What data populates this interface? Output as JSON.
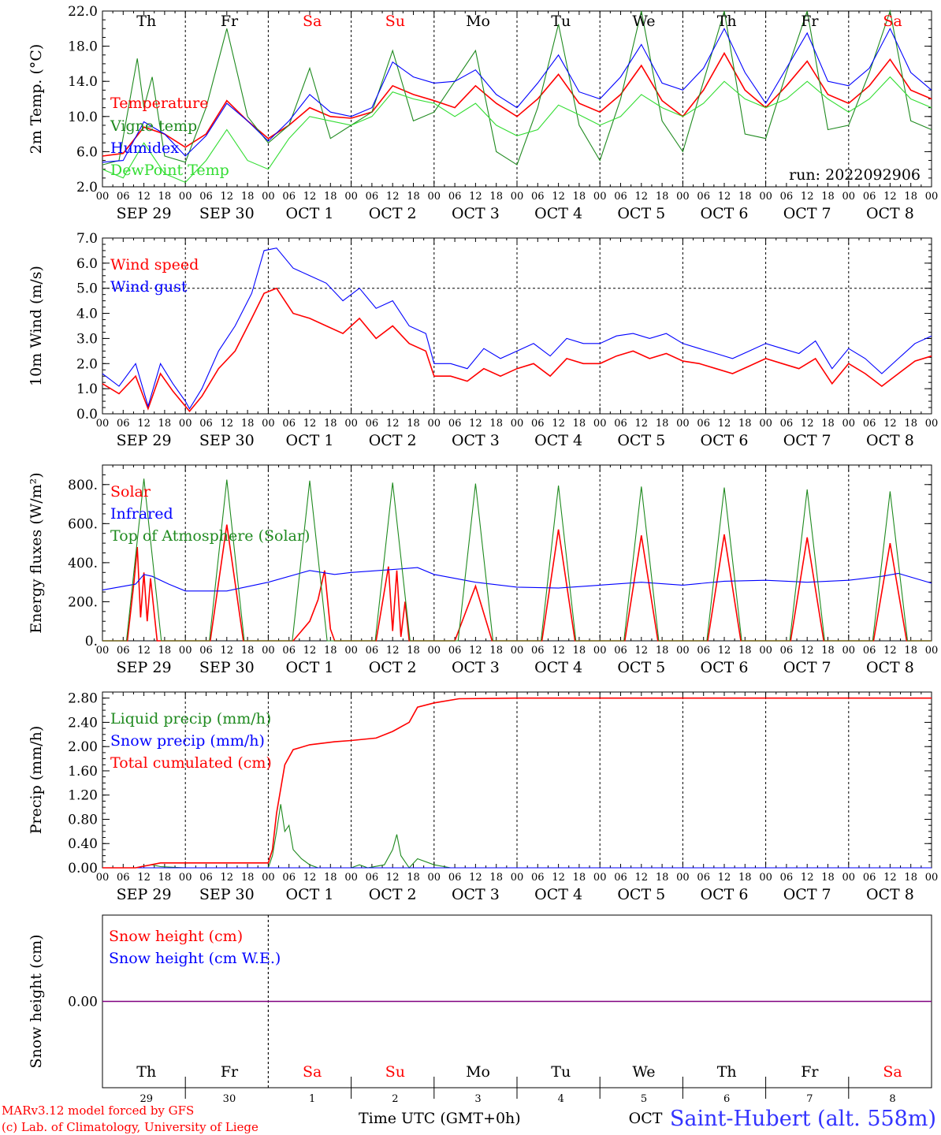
{
  "page": {
    "station_title": "Saint-Hubert (alt. 558m)",
    "run_label": "run: 2022092906",
    "credit_line1": "MARv3.12 model forced by GFS",
    "credit_line2": "(c) Lab. of Climatology, University of Liege",
    "xaxis_title": "Time UTC (GMT+0h)"
  },
  "colors": {
    "red": "#ff0000",
    "darkgreen": "#1f8a1f",
    "blue": "#0000ff",
    "lightgreen": "#33dd33",
    "purple": "#800080"
  },
  "time_axis": {
    "hour_ticks": [
      "00",
      "06",
      "12",
      "18"
    ],
    "date_labels": [
      "SEP 29",
      "SEP 30",
      "OCT  1",
      "OCT  2",
      "OCT  3",
      "OCT  4",
      "OCT  5",
      "OCT  6",
      "OCT  7",
      "OCT  8"
    ],
    "weekday_labels": [
      "Th",
      "Fr",
      "Sa",
      "Su",
      "Mo",
      "Tu",
      "We",
      "Th",
      "Fr",
      "Sa"
    ],
    "weekend_index": [
      2,
      3,
      9
    ],
    "bottom_day_numbers": [
      "29",
      "30",
      "1",
      "2",
      "3",
      "4",
      "5",
      "6",
      "7",
      "8"
    ],
    "bottom_oct_label": "OCT"
  },
  "chart_data": [
    {
      "type": "line",
      "ylabel": "2m Temp. (°C)",
      "ylim": [
        2.0,
        22.0
      ],
      "yticks": [
        "2.0",
        "6.0",
        "10.0",
        "14.0",
        "18.0",
        "22.0"
      ],
      "series": [
        {
          "name": "Temperature",
          "color_key": "red",
          "x": [
            0,
            0.25,
            0.5,
            0.75,
            1,
            1.25,
            1.5,
            1.75,
            2,
            2.25,
            2.5,
            2.75,
            3,
            3.25,
            3.5,
            3.75,
            4,
            4.25,
            4.5,
            4.75,
            5,
            5.25,
            5.5,
            5.75,
            6,
            6.25,
            6.5,
            6.75,
            7,
            7.25,
            7.5,
            7.75,
            8,
            8.25,
            8.5,
            8.75,
            9,
            9.25,
            9.5,
            9.75,
            10
          ],
          "y": [
            5.5,
            5.8,
            8.8,
            8.0,
            6.5,
            8.0,
            11.8,
            9.5,
            7.5,
            9.0,
            11.0,
            10.0,
            9.8,
            10.5,
            13.5,
            12.5,
            11.8,
            11.0,
            13.5,
            11.5,
            10.0,
            12.0,
            14.8,
            11.5,
            10.5,
            12.5,
            15.8,
            11.8,
            10.0,
            13.0,
            17.2,
            13.0,
            11.0,
            13.5,
            16.3,
            12.5,
            11.5,
            13.5,
            16.5,
            13.0,
            12.0
          ]
        },
        {
          "name": "Vigne temp",
          "color_key": "darkgreen",
          "x": [
            0,
            0.2,
            0.42,
            0.5,
            0.6,
            0.75,
            1,
            1.25,
            1.5,
            1.75,
            2,
            2.25,
            2.5,
            2.75,
            3,
            3.25,
            3.5,
            3.75,
            4,
            4.25,
            4.5,
            4.75,
            5,
            5.25,
            5.5,
            5.75,
            6,
            6.25,
            6.5,
            6.75,
            7,
            7.25,
            7.5,
            7.75,
            8,
            8.25,
            8.5,
            8.75,
            9,
            9.25,
            9.5,
            9.75,
            10
          ],
          "y": [
            4.5,
            5.0,
            16.6,
            11.0,
            14.5,
            5.5,
            4.8,
            11.0,
            20.0,
            10.0,
            7.0,
            9.0,
            15.5,
            7.5,
            9.0,
            10.5,
            17.5,
            9.5,
            10.5,
            14.0,
            17.5,
            6.0,
            4.5,
            11.0,
            20.5,
            9.0,
            5.0,
            12.0,
            22.0,
            9.5,
            6.0,
            14.0,
            22.0,
            8.0,
            7.5,
            15.0,
            22.0,
            8.5,
            9.0,
            15.0,
            22.0,
            9.5,
            8.5
          ]
        },
        {
          "name": "Humidex",
          "color_key": "blue",
          "x": [
            0,
            0.25,
            0.5,
            0.75,
            1,
            1.25,
            1.5,
            1.75,
            2,
            2.25,
            2.5,
            2.75,
            3,
            3.25,
            3.5,
            3.75,
            4,
            4.25,
            4.5,
            4.75,
            5,
            5.25,
            5.5,
            5.75,
            6,
            6.25,
            6.5,
            6.75,
            7,
            7.25,
            7.5,
            7.75,
            8,
            8.25,
            8.5,
            8.75,
            9,
            9.25,
            9.5,
            9.75,
            10
          ],
          "y": [
            4.8,
            5.0,
            9.4,
            8.0,
            5.5,
            7.8,
            11.5,
            9.5,
            7.2,
            9.5,
            12.5,
            10.5,
            10.0,
            11.0,
            16.2,
            14.5,
            13.8,
            14.0,
            15.3,
            12.5,
            11.0,
            13.8,
            17.0,
            12.8,
            12.0,
            14.5,
            18.2,
            13.8,
            13.0,
            15.5,
            20.0,
            15.0,
            11.5,
            15.5,
            19.5,
            14.0,
            13.5,
            15.5,
            20.0,
            15.0,
            13.0
          ]
        },
        {
          "name": "DewPoint Temp",
          "color_key": "lightgreen",
          "x": [
            0,
            0.25,
            0.5,
            0.75,
            1,
            1.25,
            1.5,
            1.75,
            2,
            2.25,
            2.5,
            2.75,
            3,
            3.25,
            3.5,
            3.75,
            4,
            4.25,
            4.5,
            4.75,
            5,
            5.25,
            5.5,
            5.75,
            6,
            6.25,
            6.5,
            6.75,
            7,
            7.25,
            7.5,
            7.75,
            8,
            8.25,
            8.5,
            8.75,
            9,
            9.25,
            9.5,
            9.75,
            10
          ],
          "y": [
            4.0,
            3.0,
            7.0,
            3.5,
            2.5,
            5.0,
            8.5,
            5.0,
            4.0,
            7.5,
            10.0,
            9.5,
            9.0,
            10.0,
            12.8,
            12.0,
            11.5,
            10.0,
            11.5,
            9.0,
            7.8,
            8.5,
            11.3,
            10.2,
            9.0,
            10.0,
            12.5,
            11.0,
            10.0,
            11.5,
            14.0,
            12.0,
            11.0,
            12.0,
            14.0,
            12.0,
            10.5,
            12.0,
            14.5,
            12.0,
            11.0
          ]
        }
      ]
    },
    {
      "type": "line",
      "ylabel": "10m Wind (m/s)",
      "ylim": [
        0.0,
        7.0
      ],
      "yticks": [
        "0.0",
        "1.0",
        "2.0",
        "3.0",
        "4.0",
        "5.0",
        "6.0",
        "7.0"
      ],
      "hline": 5.0,
      "series": [
        {
          "name": "Wind speed",
          "color_key": "red",
          "x": [
            0,
            0.2,
            0.4,
            0.55,
            0.7,
            0.85,
            1,
            1.05,
            1.2,
            1.4,
            1.6,
            1.8,
            1.95,
            2.1,
            2.3,
            2.5,
            2.7,
            2.9,
            3.1,
            3.3,
            3.5,
            3.7,
            3.9,
            4,
            4.2,
            4.4,
            4.6,
            4.8,
            5,
            5.2,
            5.4,
            5.6,
            5.8,
            6,
            6.2,
            6.4,
            6.6,
            6.8,
            7,
            7.2,
            7.4,
            7.6,
            7.8,
            8,
            8.2,
            8.4,
            8.6,
            8.8,
            9,
            9.2,
            9.4,
            9.6,
            9.8,
            10
          ],
          "y": [
            1.2,
            0.8,
            1.5,
            0.2,
            1.6,
            0.9,
            0.3,
            0.1,
            0.7,
            1.8,
            2.5,
            3.8,
            4.8,
            5.0,
            4.0,
            3.8,
            3.5,
            3.2,
            3.8,
            3.0,
            3.5,
            2.8,
            2.5,
            1.5,
            1.5,
            1.3,
            1.8,
            1.5,
            1.8,
            2.0,
            1.5,
            2.2,
            2.0,
            2.0,
            2.3,
            2.5,
            2.2,
            2.4,
            2.1,
            2.0,
            1.8,
            1.6,
            1.9,
            2.2,
            2.0,
            1.8,
            2.2,
            1.2,
            2.0,
            1.6,
            1.1,
            1.6,
            2.1,
            2.3
          ]
        },
        {
          "name": "Wind gust",
          "color_key": "blue",
          "x": [
            0,
            0.2,
            0.4,
            0.55,
            0.7,
            0.85,
            1,
            1.05,
            1.2,
            1.4,
            1.6,
            1.8,
            1.95,
            2.1,
            2.3,
            2.5,
            2.7,
            2.9,
            3.1,
            3.3,
            3.5,
            3.7,
            3.9,
            4,
            4.2,
            4.4,
            4.6,
            4.8,
            5,
            5.2,
            5.4,
            5.6,
            5.8,
            6,
            6.2,
            6.4,
            6.6,
            6.8,
            7,
            7.2,
            7.4,
            7.6,
            7.8,
            8,
            8.2,
            8.4,
            8.6,
            8.8,
            9,
            9.2,
            9.4,
            9.6,
            9.8,
            10
          ],
          "y": [
            1.6,
            1.1,
            2.0,
            0.3,
            2.0,
            1.2,
            0.5,
            0.2,
            1.0,
            2.5,
            3.5,
            4.8,
            6.5,
            6.6,
            5.8,
            5.5,
            5.2,
            4.5,
            5.0,
            4.2,
            4.5,
            3.5,
            3.2,
            2.0,
            2.0,
            1.8,
            2.6,
            2.2,
            2.5,
            2.8,
            2.3,
            3.0,
            2.8,
            2.8,
            3.1,
            3.2,
            3.0,
            3.2,
            2.8,
            2.6,
            2.4,
            2.2,
            2.5,
            2.8,
            2.6,
            2.4,
            2.9,
            1.8,
            2.6,
            2.2,
            1.6,
            2.2,
            2.8,
            3.1
          ]
        }
      ]
    },
    {
      "type": "line",
      "ylabel": "Energy fluxes (W/m²)",
      "ylim": [
        0,
        900
      ],
      "yticks": [
        "0.",
        "200.",
        "400.",
        "600.",
        "800."
      ],
      "series": [
        {
          "name": "Solar",
          "color_key": "red",
          "x": [
            0,
            0.3,
            0.38,
            0.42,
            0.46,
            0.5,
            0.54,
            0.58,
            0.66,
            1,
            1.3,
            1.5,
            1.7,
            2,
            2.3,
            2.5,
            2.6,
            2.68,
            2.75,
            2.8,
            3,
            3.3,
            3.45,
            3.5,
            3.55,
            3.6,
            3.65,
            3.7,
            4,
            4.25,
            4.5,
            4.7,
            5,
            5.3,
            5.5,
            5.7,
            6,
            6.3,
            6.5,
            6.7,
            7,
            7.3,
            7.5,
            7.7,
            8,
            8.3,
            8.5,
            8.7,
            9,
            9.3,
            9.5,
            9.7,
            10
          ],
          "y": [
            0,
            0,
            300,
            480,
            120,
            350,
            100,
            320,
            0,
            0,
            0,
            595,
            0,
            0,
            0,
            100,
            210,
            360,
            60,
            0,
            0,
            0,
            380,
            50,
            360,
            20,
            200,
            0,
            0,
            0,
            280,
            0,
            0,
            0,
            570,
            0,
            0,
            0,
            540,
            0,
            0,
            0,
            545,
            0,
            0,
            0,
            530,
            0,
            0,
            0,
            500,
            0,
            0
          ]
        },
        {
          "name": "Infrared",
          "color_key": "blue",
          "x": [
            0,
            0.4,
            0.5,
            0.6,
            0.8,
            1,
            1.5,
            2,
            2.5,
            2.8,
            3,
            3.5,
            3.8,
            4,
            4.5,
            5,
            5.5,
            6,
            6.5,
            7,
            7.5,
            8,
            8.5,
            9,
            9.4,
            9.6,
            10
          ],
          "y": [
            260,
            290,
            340,
            330,
            290,
            255,
            255,
            300,
            360,
            340,
            350,
            365,
            375,
            340,
            300,
            275,
            270,
            285,
            300,
            285,
            305,
            310,
            300,
            310,
            330,
            345,
            295
          ]
        },
        {
          "name": "Top of Atmosphere (Solar)",
          "color_key": "darkgreen",
          "x": [
            0,
            0.29,
            0.5,
            0.71,
            1,
            1.29,
            1.5,
            1.71,
            2,
            2.29,
            2.5,
            2.71,
            3,
            3.29,
            3.5,
            3.71,
            4,
            4.29,
            4.5,
            4.71,
            5,
            5.29,
            5.5,
            5.71,
            6,
            6.29,
            6.5,
            6.71,
            7,
            7.29,
            7.5,
            7.71,
            8,
            8.29,
            8.5,
            8.71,
            9,
            9.29,
            9.5,
            9.71,
            10
          ],
          "y": [
            0,
            0,
            830,
            0,
            0,
            0,
            825,
            0,
            0,
            0,
            820,
            0,
            0,
            0,
            810,
            0,
            0,
            0,
            805,
            0,
            0,
            0,
            795,
            0,
            0,
            0,
            790,
            0,
            0,
            0,
            785,
            0,
            0,
            0,
            775,
            0,
            0,
            0,
            765,
            0,
            0
          ]
        }
      ]
    },
    {
      "type": "line",
      "ylabel": "Precip (mm/h)",
      "ylim": [
        0.0,
        2.9
      ],
      "yticks": [
        "0.00",
        "0.40",
        "0.80",
        "1.20",
        "1.60",
        "2.00",
        "2.40",
        "2.80"
      ],
      "series": [
        {
          "name": "Liquid precip (mm/h)",
          "color_key": "darkgreen",
          "x": [
            0,
            0.4,
            0.5,
            0.6,
            0.7,
            1,
            2,
            2.05,
            2.1,
            2.15,
            2.2,
            2.25,
            2.3,
            2.4,
            2.5,
            2.6,
            2.8,
            3,
            3.1,
            3.2,
            3.4,
            3.5,
            3.55,
            3.6,
            3.7,
            3.8,
            4,
            4.2,
            10
          ],
          "y": [
            0,
            0,
            0.03,
            0.05,
            0.02,
            0,
            0,
            0.2,
            0.6,
            1.05,
            0.6,
            0.7,
            0.3,
            0.15,
            0.05,
            0,
            0,
            0,
            0.05,
            0,
            0.05,
            0.3,
            0.55,
            0.2,
            0,
            0.15,
            0.05,
            0,
            0
          ]
        },
        {
          "name": "Snow precip (mm/h)",
          "color_key": "blue",
          "x": [
            0,
            10
          ],
          "y": [
            0,
            0
          ]
        },
        {
          "name": "Total cumulated (cm)",
          "color_key": "red",
          "x": [
            0,
            0.4,
            0.7,
            1,
            2,
            2.05,
            2.1,
            2.2,
            2.3,
            2.5,
            2.8,
            3,
            3.3,
            3.5,
            3.7,
            3.8,
            4,
            4.3,
            5,
            10
          ],
          "y": [
            0,
            0,
            0.08,
            0.08,
            0.08,
            0.3,
            0.9,
            1.7,
            1.95,
            2.03,
            2.08,
            2.1,
            2.14,
            2.25,
            2.4,
            2.65,
            2.72,
            2.79,
            2.8,
            2.8
          ]
        }
      ]
    },
    {
      "type": "line",
      "ylabel": "Snow height (cm)",
      "ylim": [
        -1,
        1
      ],
      "yticks": [
        "0.00"
      ],
      "series": [
        {
          "name": "Snow height (cm)",
          "color_key": "red",
          "x": [
            0,
            10
          ],
          "y": [
            0,
            0
          ]
        },
        {
          "name": "Snow height (cm W.E.)",
          "color_key": "blue",
          "x": [
            0,
            10
          ],
          "y": [
            0,
            0
          ]
        }
      ]
    }
  ]
}
